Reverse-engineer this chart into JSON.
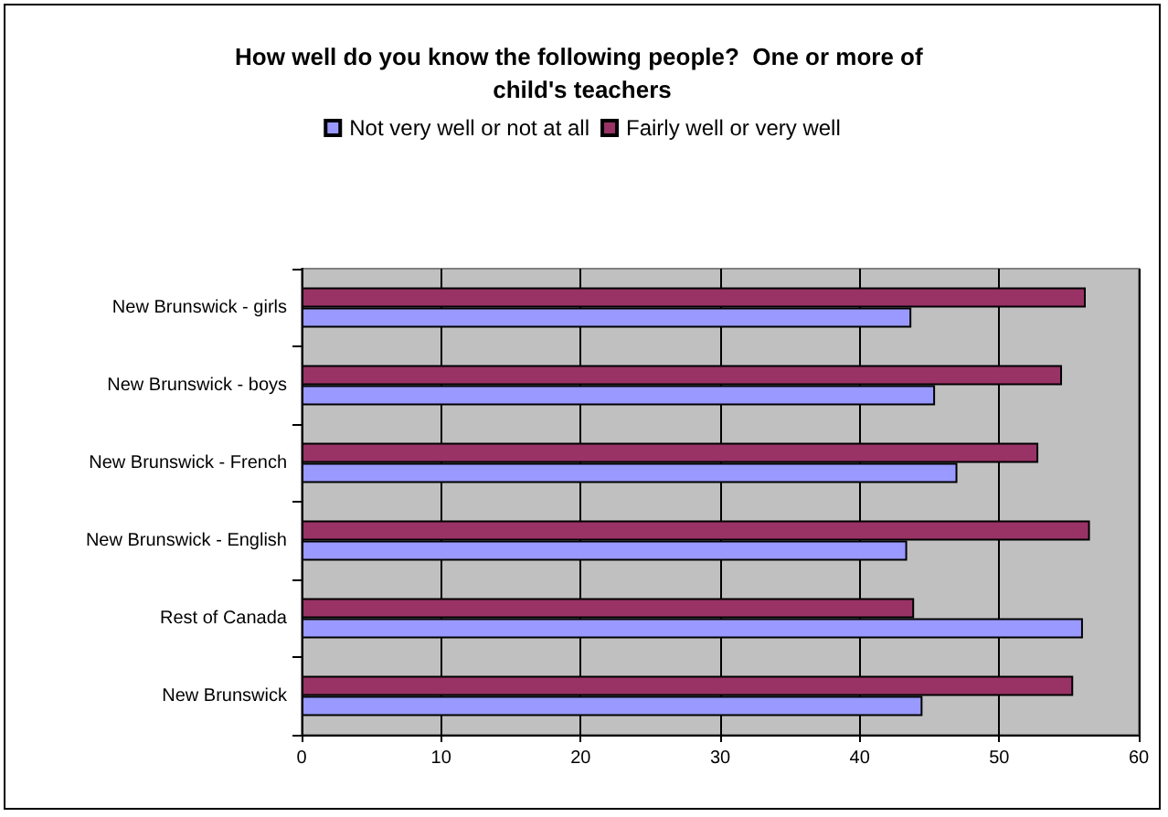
{
  "chart_data": {
    "type": "bar",
    "orientation": "horizontal",
    "title": "How well do you know the following people?  One or more of child's teachers",
    "categories": [
      "New Brunswick - girls",
      "New Brunswick - boys",
      "New Brunswick - French",
      "New Brunswick - English",
      "Rest of Canada",
      "New Brunswick"
    ],
    "series": [
      {
        "name": "Not very well or not at all",
        "color": "#9999ff",
        "values": [
          43.7,
          45.4,
          47.0,
          43.4,
          56.0,
          44.5
        ]
      },
      {
        "name": "Fairly well or very well",
        "color": "#993366",
        "values": [
          56.2,
          54.5,
          52.8,
          56.5,
          43.9,
          55.3
        ]
      }
    ],
    "xlim": [
      0,
      60
    ],
    "xticks": [
      0,
      10,
      20,
      30,
      40,
      50,
      60
    ],
    "grid": "x",
    "legend": "top"
  }
}
